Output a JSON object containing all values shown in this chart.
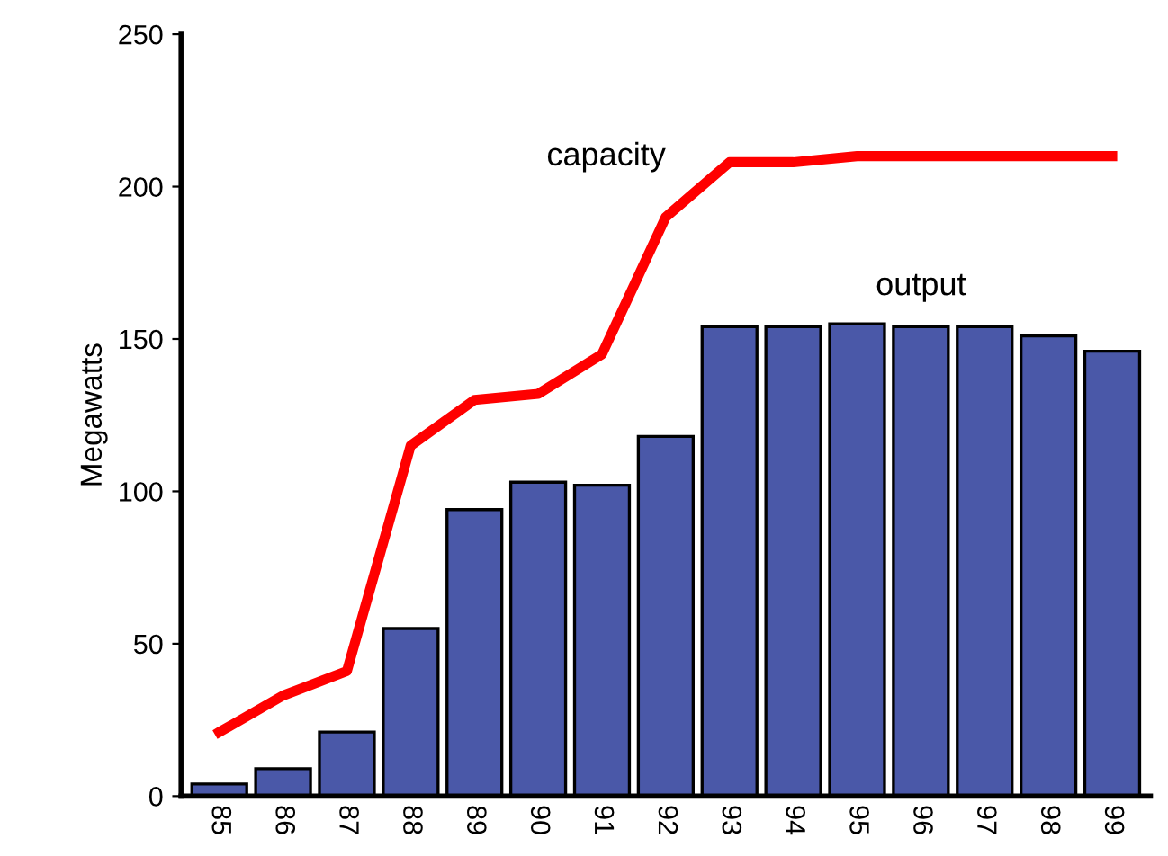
{
  "chart_data": {
    "type": "bar",
    "ylabel": "Megawatts",
    "categories": [
      "85",
      "86",
      "87",
      "88",
      "89",
      "90",
      "91",
      "92",
      "93",
      "94",
      "95",
      "96",
      "97",
      "98",
      "99"
    ],
    "series": [
      {
        "name": "output",
        "color": "#4a58a8",
        "values": [
          4,
          9,
          21,
          55,
          94,
          103,
          102,
          118,
          154,
          154,
          155,
          154,
          154,
          151,
          146
        ]
      },
      {
        "name": "capacity",
        "type": "line",
        "color": "#ff0000",
        "values": [
          21,
          33,
          41,
          115,
          130,
          132,
          145,
          190,
          208,
          208,
          210,
          210,
          210,
          210,
          210
        ]
      }
    ],
    "ylim": [
      0,
      250
    ],
    "yticks": [
      0,
      50,
      100,
      150,
      200,
      250
    ],
    "grid": false,
    "legend": false,
    "marker": "none",
    "line_style": "solid"
  }
}
